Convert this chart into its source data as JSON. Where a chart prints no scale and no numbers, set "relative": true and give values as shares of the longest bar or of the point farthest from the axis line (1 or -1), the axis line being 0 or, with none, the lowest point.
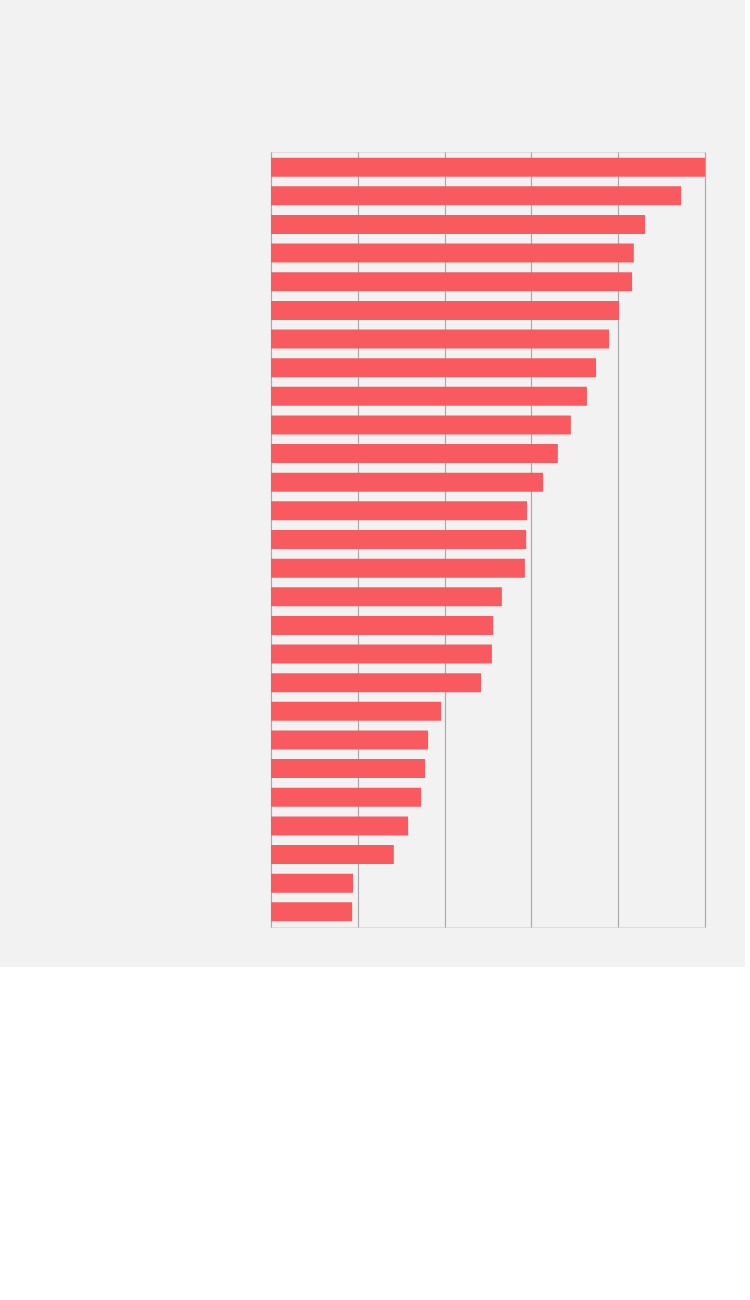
{
  "chart_data": {
    "type": "bar",
    "orientation": "horizontal",
    "relative": true,
    "grid": "x",
    "tick_labels": false,
    "categories": [
      null,
      null,
      null,
      null,
      null,
      null,
      null,
      null,
      null,
      null,
      null,
      null,
      null,
      null,
      null,
      null,
      null,
      null,
      null,
      null,
      null,
      null,
      null,
      null,
      null,
      null,
      null
    ],
    "series": [
      {
        "color": "#f85a60",
        "values": [
          1,
          0.945,
          0.862,
          0.836,
          0.832,
          0.802,
          0.779,
          0.749,
          0.728,
          0.691,
          0.661,
          0.627,
          0.59,
          0.588,
          0.585,
          0.532,
          0.512,
          0.509,
          0.484,
          0.392,
          0.362,
          0.355,
          0.346,
          0.316,
          0.283,
          0.189,
          0.187
        ]
      }
    ]
  }
}
